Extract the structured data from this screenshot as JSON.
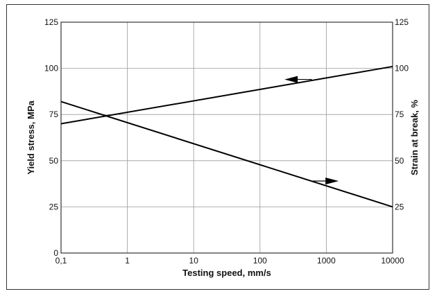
{
  "chart_data": {
    "type": "line",
    "x_scale": "log",
    "xlabel": "Testing speed, mm/s",
    "ylabel_left": "Yield stress, MPa",
    "ylabel_right": "Strain at break, %",
    "x_ticks": [
      "0,1",
      "1",
      "10",
      "100",
      "1000",
      "10000"
    ],
    "x_tick_values": [
      0.1,
      1,
      10,
      100,
      1000,
      10000
    ],
    "y_ticks_left": [
      "0",
      "25",
      "50",
      "75",
      "100",
      "125"
    ],
    "y_ticks_right": [
      "25",
      "50",
      "75",
      "100",
      "125"
    ],
    "ylim": [
      0,
      125
    ],
    "xlim": [
      0.1,
      10000
    ],
    "grid": true,
    "series": [
      {
        "axis": "left",
        "x": [
          0.1,
          10000
        ],
        "y": [
          70,
          101
        ]
      },
      {
        "axis": "right",
        "x": [
          0.1,
          10000
        ],
        "y": [
          82,
          25
        ]
      }
    ],
    "annotations": [
      {
        "series_index": 0,
        "x": 600,
        "y": 94,
        "arrow_direction": "left"
      },
      {
        "series_index": 1,
        "x": 600,
        "y": 39,
        "arrow_direction": "right"
      }
    ],
    "colors": {
      "line": "#000000",
      "grid": "#9a9a9a",
      "frame": "#333333"
    }
  }
}
